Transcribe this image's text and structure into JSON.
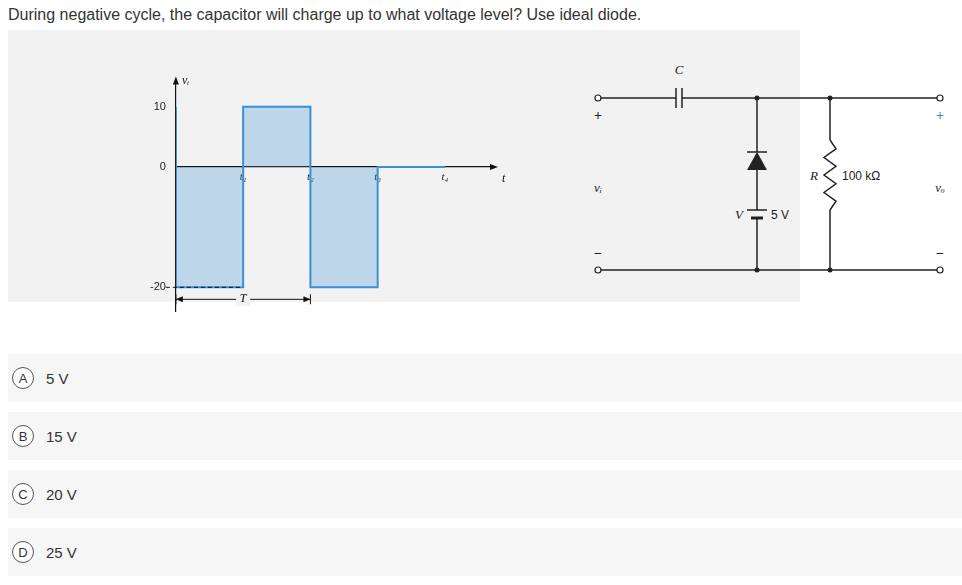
{
  "question": "During negative cycle, the capacitor will charge up to what voltage level? Use ideal diode.",
  "chart_data": {
    "type": "line",
    "line_style": "stepped",
    "x": [
      0,
      1,
      2,
      3,
      4
    ],
    "values": [
      10,
      -20,
      10,
      -20,
      0
    ],
    "color": "#3b8ed8",
    "xlim": [
      0,
      4.7
    ],
    "xticks": [
      {
        "value": 1,
        "label": "t₁"
      },
      {
        "value": 2,
        "label": "t₂"
      },
      {
        "value": 3,
        "label": "t₃"
      },
      {
        "value": 4,
        "label": "t₄"
      }
    ],
    "ylim": [
      -24,
      14
    ],
    "yticks": [
      -20,
      0,
      10
    ],
    "grid": false,
    "y_label": "vᵢ",
    "x_label": "t",
    "period": {
      "label": "T",
      "from": 0,
      "to": 2
    }
  },
  "circuit": {
    "capacitor": "C",
    "input_label": "vᵢ",
    "output_label": "vₒ",
    "plus": "+",
    "minus": "−",
    "battery": {
      "name": "V",
      "value": "5 V"
    },
    "resistor": {
      "name": "R",
      "value": "100 kΩ"
    }
  },
  "options": [
    {
      "letter": "A",
      "text": "5 V"
    },
    {
      "letter": "B",
      "text": "15 V"
    },
    {
      "letter": "C",
      "text": "20 V"
    },
    {
      "letter": "D",
      "text": "25 V"
    }
  ]
}
